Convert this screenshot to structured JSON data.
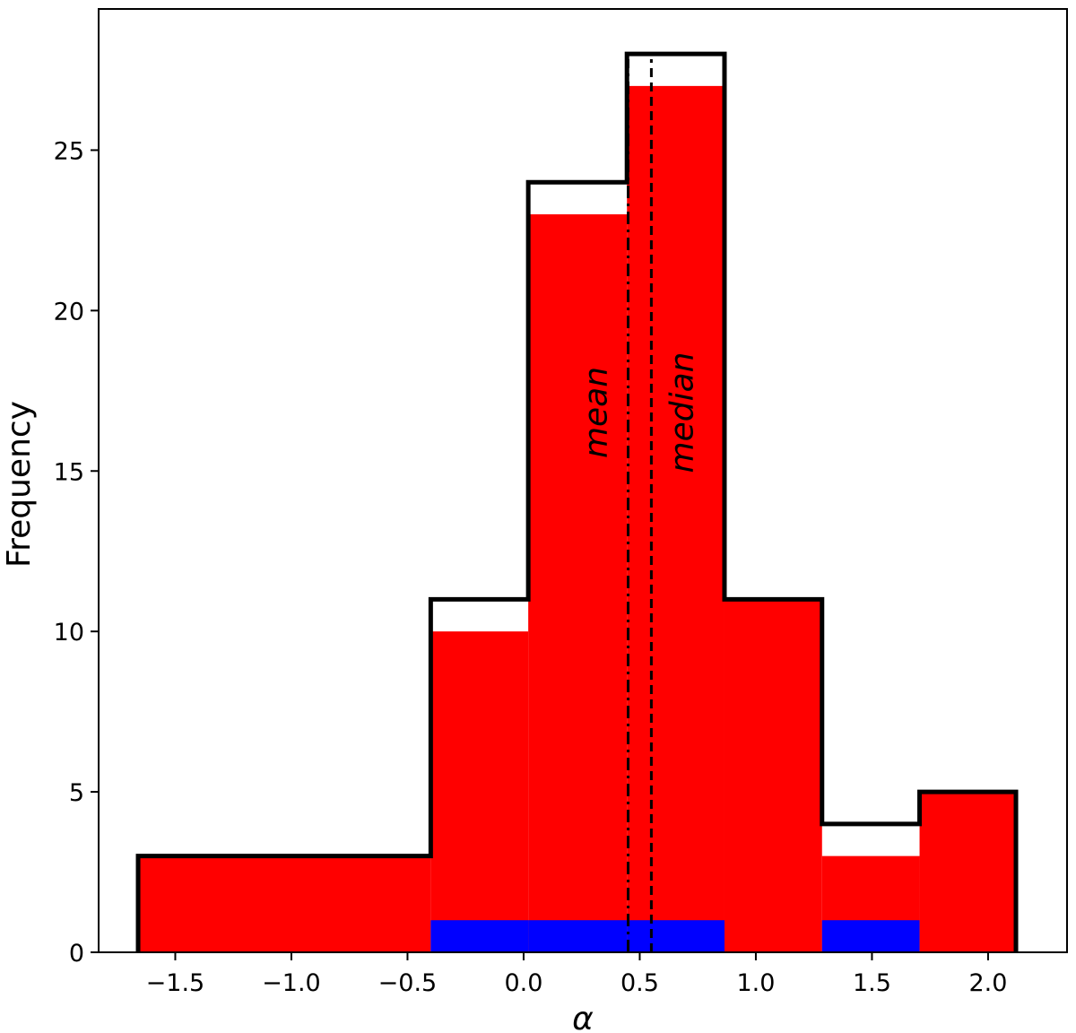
{
  "chart_data": {
    "type": "bar",
    "xlabel": "α",
    "ylabel": "Frequency",
    "xlim": [
      -1.83,
      2.34
    ],
    "ylim": [
      0,
      29.4
    ],
    "x_ticks": [
      -1.5,
      -1.0,
      -0.5,
      0.0,
      0.5,
      1.0,
      1.5,
      2.0
    ],
    "x_tick_labels": [
      "−1.5",
      "−1.0",
      "−0.5",
      "0.0",
      "0.5",
      "1.0",
      "1.5",
      "2.0"
    ],
    "y_ticks": [
      0,
      5,
      10,
      15,
      20,
      25
    ],
    "y_tick_labels": [
      "0",
      "5",
      "10",
      "15",
      "20",
      "25"
    ],
    "bin_edges": [
      -1.66,
      -0.4,
      0.02,
      0.445,
      0.865,
      1.285,
      1.705,
      2.12
    ],
    "series": [
      {
        "role": "outline",
        "color": "#000000",
        "values": [
          3,
          11,
          24,
          28,
          11,
          4,
          5
        ]
      },
      {
        "role": "fill",
        "color": "#ff0000",
        "values": [
          3,
          10,
          23,
          27,
          11,
          3,
          5
        ]
      },
      {
        "role": "fill",
        "color": "#0000ff",
        "values": [
          0,
          1,
          1,
          1,
          0,
          1,
          0
        ]
      }
    ],
    "reference_lines": [
      {
        "label": "mean",
        "x": 0.45,
        "style": "dashdot"
      },
      {
        "label": "median",
        "x": 0.55,
        "style": "dashed"
      }
    ],
    "grid": false
  }
}
